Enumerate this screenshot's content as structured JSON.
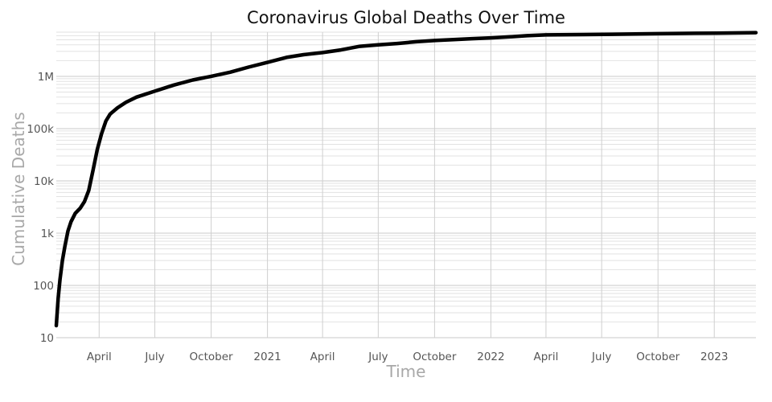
{
  "chart_data": {
    "type": "line",
    "title": "Coronavirus Global Deaths Over Time",
    "xlabel": "Time",
    "ylabel": "Cumulative Deaths",
    "yscale": "log",
    "ylim": [
      10,
      7000000
    ],
    "xlim": [
      "2020-01-22",
      "2023-03-10"
    ],
    "grid": true,
    "x_ticks": [
      {
        "date": "2020-04-01",
        "label": "April"
      },
      {
        "date": "2020-07-01",
        "label": "July"
      },
      {
        "date": "2020-10-01",
        "label": "October"
      },
      {
        "date": "2021-01-01",
        "label": "2021"
      },
      {
        "date": "2021-04-01",
        "label": "April"
      },
      {
        "date": "2021-07-01",
        "label": "July"
      },
      {
        "date": "2021-10-01",
        "label": "October"
      },
      {
        "date": "2022-01-01",
        "label": "2022"
      },
      {
        "date": "2022-04-01",
        "label": "April"
      },
      {
        "date": "2022-07-01",
        "label": "July"
      },
      {
        "date": "2022-10-01",
        "label": "October"
      },
      {
        "date": "2023-01-01",
        "label": "2023"
      }
    ],
    "y_ticks": [
      {
        "value": 10,
        "label": "10"
      },
      {
        "value": 100,
        "label": "100"
      },
      {
        "value": 1000,
        "label": "1k"
      },
      {
        "value": 10000,
        "label": "10k"
      },
      {
        "value": 100000,
        "label": "100k"
      },
      {
        "value": 1000000,
        "label": "1M"
      }
    ],
    "x": [
      "2020-01-22",
      "2020-01-25",
      "2020-01-28",
      "2020-02-01",
      "2020-02-05",
      "2020-02-10",
      "2020-02-15",
      "2020-02-22",
      "2020-03-01",
      "2020-03-08",
      "2020-03-15",
      "2020-03-22",
      "2020-03-29",
      "2020-04-05",
      "2020-04-12",
      "2020-04-19",
      "2020-05-01",
      "2020-05-15",
      "2020-06-01",
      "2020-07-01",
      "2020-08-01",
      "2020-09-01",
      "2020-10-01",
      "2020-11-01",
      "2020-12-01",
      "2021-01-01",
      "2021-02-01",
      "2021-03-01",
      "2021-04-01",
      "2021-05-01",
      "2021-06-01",
      "2021-07-01",
      "2021-08-01",
      "2021-09-01",
      "2021-10-01",
      "2021-11-01",
      "2021-12-01",
      "2022-01-01",
      "2022-02-01",
      "2022-03-01",
      "2022-04-01",
      "2022-06-01",
      "2022-08-01",
      "2022-10-01",
      "2022-12-01",
      "2023-01-01",
      "2023-03-10"
    ],
    "series": [
      {
        "values": [
          17,
          56,
          130,
          300,
          560,
          1100,
          1650,
          2400,
          3000,
          4000,
          6500,
          16000,
          40000,
          80000,
          140000,
          190000,
          250000,
          320000,
          400000,
          520000,
          680000,
          850000,
          1000000,
          1200000,
          1500000,
          1850000,
          2300000,
          2600000,
          2850000,
          3200000,
          3750000,
          4000000,
          4250000,
          4600000,
          4850000,
          5050000,
          5250000,
          5450000,
          5700000,
          6000000,
          6200000,
          6300000,
          6400000,
          6550000,
          6650000,
          6700000,
          6850000
        ]
      }
    ]
  }
}
